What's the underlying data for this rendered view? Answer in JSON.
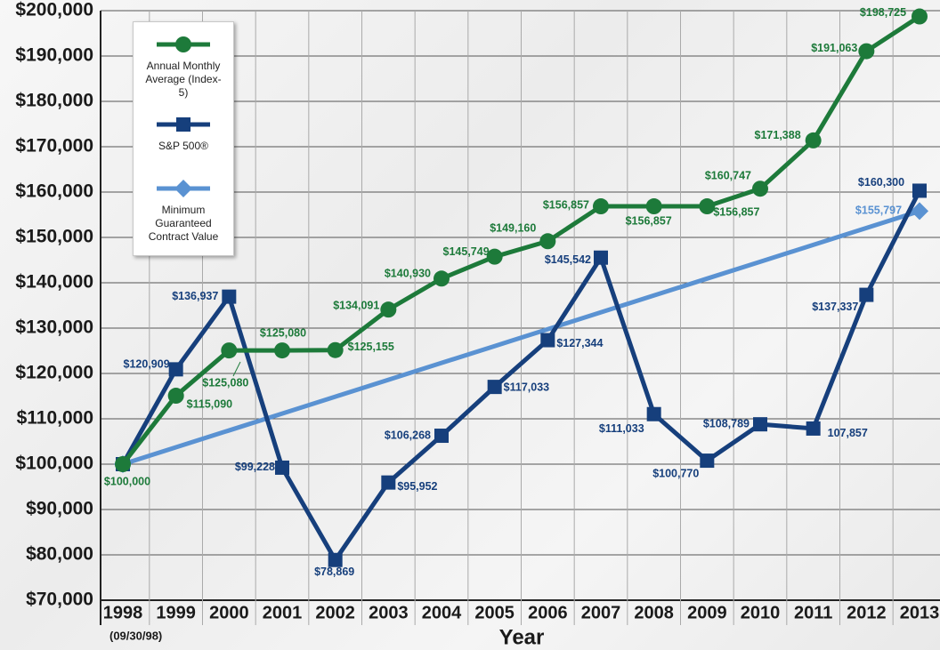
{
  "chart_data": {
    "type": "line",
    "categories": [
      "1998",
      "1999",
      "2000",
      "2001",
      "2002",
      "2003",
      "2004",
      "2005",
      "2006",
      "2007",
      "2008",
      "2009",
      "2010",
      "2011",
      "2012",
      "2013"
    ],
    "annotation": "(09/30/98)",
    "x_label": "Year",
    "ylim": [
      70000,
      200000
    ],
    "yticks": [
      {
        "value": 70000,
        "label": "$70,000"
      },
      {
        "value": 80000,
        "label": "$80,000"
      },
      {
        "value": 90000,
        "label": "$90,000"
      },
      {
        "value": 100000,
        "label": "$100,000"
      },
      {
        "value": 110000,
        "label": "$110,000"
      },
      {
        "value": 120000,
        "label": "$120,000"
      },
      {
        "value": 130000,
        "label": "$130,000"
      },
      {
        "value": 140000,
        "label": "$140,000"
      },
      {
        "value": 150000,
        "label": "$150,000"
      },
      {
        "value": 160000,
        "label": "$160,000"
      },
      {
        "value": 170000,
        "label": "$170,000"
      },
      {
        "value": 180000,
        "label": "$180,000"
      },
      {
        "value": 190000,
        "label": "$190,000"
      },
      {
        "value": 200000,
        "label": "$200,000"
      }
    ],
    "grid": true,
    "legend": "top-left",
    "series": [
      {
        "name": "Annual Monthly Average (Index-5)",
        "color": "#1d7a3a",
        "marker": "circle",
        "values": [
          100000,
          115090,
          125080,
          125080,
          125155,
          134091,
          140930,
          145749,
          149160,
          156857,
          156857,
          156857,
          160747,
          171388,
          191063,
          198725
        ],
        "value_labels": [
          "$100,000",
          "$115,090",
          "$125,080",
          "$125,080",
          "$125,155",
          "$134,091",
          "$140,930",
          "$145,749",
          "$149,160",
          "$156,857",
          "$156,857",
          "$156,857",
          "$160,747",
          "$171,388",
          "$191,063",
          "$198,725"
        ]
      },
      {
        "name": "S&P 500®",
        "color": "#163f7c",
        "marker": "square",
        "values": [
          100000,
          120909,
          136937,
          99228,
          78869,
          95952,
          106268,
          117033,
          127344,
          145542,
          111033,
          100770,
          108789,
          107857,
          137337,
          160300
        ],
        "value_labels": [
          null,
          "$120,909",
          "$136,937",
          "$99,228",
          "$78,869",
          "$95,952",
          "$106,268",
          "$117,033",
          "$127,344",
          "$145,542",
          "$111,033",
          "$100,770",
          "$108,789",
          "107,857",
          "$137,337",
          "$160,300"
        ]
      },
      {
        "name": "Minimum Guaranteed Contract Value",
        "color": "#5a92d2",
        "marker": "diamond",
        "values": [
          100000,
          103720,
          107440,
          111159,
          114879,
          118599,
          122319,
          126039,
          129759,
          133478,
          137198,
          140918,
          144638,
          148358,
          152077,
          155797
        ],
        "value_labels": [
          null,
          null,
          null,
          null,
          null,
          null,
          null,
          null,
          null,
          null,
          null,
          null,
          null,
          null,
          null,
          "$155,797"
        ]
      }
    ]
  }
}
